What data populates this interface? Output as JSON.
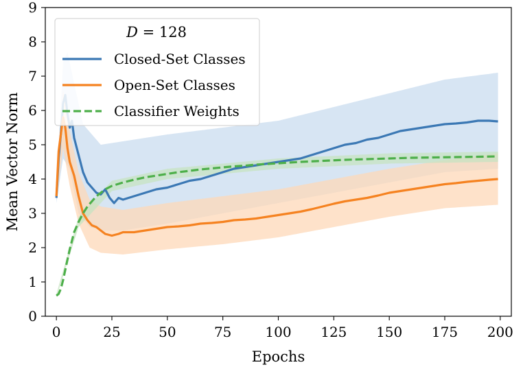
{
  "chart_data": {
    "type": "line",
    "title": "",
    "xlabel": "Epochs",
    "ylabel": "Mean Vector Norm",
    "xlim": [
      -5,
      205
    ],
    "ylim": [
      0,
      9
    ],
    "xticks": [
      "0",
      "25",
      "50",
      "75",
      "100",
      "125",
      "150",
      "175",
      "200"
    ],
    "yticks": [
      "0",
      "1",
      "2",
      "3",
      "4",
      "5",
      "6",
      "7",
      "8",
      "9"
    ],
    "legend": {
      "title_var": "D",
      "title_eq": " = 128",
      "placement": "top-left"
    },
    "series": [
      {
        "name": "Closed-Set Classes",
        "color": "#3b78b4",
        "style": "solid",
        "band_color": "#c9dcef",
        "points": [
          [
            0,
            3.45
          ],
          [
            1,
            4.6
          ],
          [
            2,
            5.3
          ],
          [
            3,
            6.2
          ],
          [
            4,
            6.45
          ],
          [
            5,
            5.9
          ],
          [
            6,
            5.5
          ],
          [
            7,
            5.7
          ],
          [
            8,
            5.2
          ],
          [
            10,
            4.7
          ],
          [
            12,
            4.2
          ],
          [
            14,
            3.9
          ],
          [
            16,
            3.75
          ],
          [
            18,
            3.6
          ],
          [
            20,
            3.55
          ],
          [
            22,
            3.7
          ],
          [
            24,
            3.45
          ],
          [
            26,
            3.3
          ],
          [
            28,
            3.45
          ],
          [
            30,
            3.4
          ],
          [
            35,
            3.5
          ],
          [
            40,
            3.6
          ],
          [
            45,
            3.7
          ],
          [
            50,
            3.75
          ],
          [
            55,
            3.85
          ],
          [
            60,
            3.95
          ],
          [
            65,
            4.0
          ],
          [
            70,
            4.1
          ],
          [
            75,
            4.2
          ],
          [
            80,
            4.3
          ],
          [
            85,
            4.35
          ],
          [
            90,
            4.4
          ],
          [
            95,
            4.45
          ],
          [
            100,
            4.5
          ],
          [
            105,
            4.55
          ],
          [
            110,
            4.6
          ],
          [
            115,
            4.7
          ],
          [
            120,
            4.8
          ],
          [
            125,
            4.9
          ],
          [
            130,
            5.0
          ],
          [
            135,
            5.05
          ],
          [
            140,
            5.15
          ],
          [
            145,
            5.2
          ],
          [
            150,
            5.3
          ],
          [
            155,
            5.4
          ],
          [
            160,
            5.45
          ],
          [
            165,
            5.5
          ],
          [
            170,
            5.55
          ],
          [
            175,
            5.6
          ],
          [
            180,
            5.62
          ],
          [
            185,
            5.65
          ],
          [
            190,
            5.7
          ],
          [
            195,
            5.7
          ],
          [
            199,
            5.68
          ]
        ],
        "band_lower": [
          [
            0,
            3.3
          ],
          [
            3,
            4.6
          ],
          [
            6,
            4.3
          ],
          [
            10,
            3.0
          ],
          [
            15,
            2.6
          ],
          [
            20,
            2.5
          ],
          [
            30,
            2.5
          ],
          [
            50,
            2.7
          ],
          [
            75,
            3.0
          ],
          [
            100,
            3.3
          ],
          [
            125,
            3.6
          ],
          [
            150,
            3.9
          ],
          [
            175,
            4.2
          ],
          [
            199,
            4.3
          ]
        ],
        "band_upper": [
          [
            0,
            3.6
          ],
          [
            3,
            7.4
          ],
          [
            5,
            7.7
          ],
          [
            8,
            6.8
          ],
          [
            12,
            5.6
          ],
          [
            20,
            5.0
          ],
          [
            30,
            5.1
          ],
          [
            50,
            5.3
          ],
          [
            75,
            5.5
          ],
          [
            100,
            5.7
          ],
          [
            125,
            6.1
          ],
          [
            150,
            6.5
          ],
          [
            175,
            6.9
          ],
          [
            199,
            7.1
          ]
        ]
      },
      {
        "name": "Open-Set Classes",
        "color": "#f58220",
        "style": "solid",
        "band_color": "#fed8b8",
        "points": [
          [
            0,
            3.5
          ],
          [
            1,
            4.8
          ],
          [
            2,
            5.3
          ],
          [
            3,
            5.8
          ],
          [
            4,
            5.5
          ],
          [
            5,
            4.9
          ],
          [
            6,
            4.5
          ],
          [
            7,
            4.3
          ],
          [
            8,
            4.1
          ],
          [
            10,
            3.5
          ],
          [
            12,
            3.0
          ],
          [
            14,
            2.8
          ],
          [
            16,
            2.65
          ],
          [
            18,
            2.6
          ],
          [
            20,
            2.5
          ],
          [
            22,
            2.4
          ],
          [
            25,
            2.35
          ],
          [
            28,
            2.4
          ],
          [
            30,
            2.45
          ],
          [
            35,
            2.45
          ],
          [
            40,
            2.5
          ],
          [
            45,
            2.55
          ],
          [
            50,
            2.6
          ],
          [
            55,
            2.62
          ],
          [
            60,
            2.65
          ],
          [
            65,
            2.7
          ],
          [
            70,
            2.72
          ],
          [
            75,
            2.75
          ],
          [
            80,
            2.8
          ],
          [
            85,
            2.82
          ],
          [
            90,
            2.85
          ],
          [
            95,
            2.9
          ],
          [
            100,
            2.95
          ],
          [
            105,
            3.0
          ],
          [
            110,
            3.05
          ],
          [
            115,
            3.12
          ],
          [
            120,
            3.2
          ],
          [
            125,
            3.28
          ],
          [
            130,
            3.35
          ],
          [
            135,
            3.4
          ],
          [
            140,
            3.45
          ],
          [
            145,
            3.52
          ],
          [
            150,
            3.6
          ],
          [
            155,
            3.65
          ],
          [
            160,
            3.7
          ],
          [
            165,
            3.75
          ],
          [
            170,
            3.8
          ],
          [
            175,
            3.85
          ],
          [
            180,
            3.88
          ],
          [
            185,
            3.92
          ],
          [
            190,
            3.95
          ],
          [
            195,
            3.98
          ],
          [
            199,
            4.0
          ]
        ],
        "band_lower": [
          [
            0,
            3.4
          ],
          [
            3,
            4.9
          ],
          [
            6,
            3.8
          ],
          [
            10,
            2.7
          ],
          [
            15,
            2.0
          ],
          [
            20,
            1.85
          ],
          [
            30,
            1.8
          ],
          [
            50,
            1.95
          ],
          [
            75,
            2.1
          ],
          [
            100,
            2.3
          ],
          [
            125,
            2.6
          ],
          [
            150,
            2.9
          ],
          [
            175,
            3.15
          ],
          [
            199,
            3.25
          ]
        ],
        "band_upper": [
          [
            0,
            3.6
          ],
          [
            3,
            6.6
          ],
          [
            6,
            5.4
          ],
          [
            10,
            4.2
          ],
          [
            15,
            3.4
          ],
          [
            20,
            3.2
          ],
          [
            30,
            3.1
          ],
          [
            50,
            3.3
          ],
          [
            75,
            3.5
          ],
          [
            100,
            3.7
          ],
          [
            125,
            4.0
          ],
          [
            150,
            4.3
          ],
          [
            175,
            4.55
          ],
          [
            199,
            4.75
          ]
        ]
      },
      {
        "name": "Classifier Weights",
        "color": "#4daf4a",
        "style": "dashed",
        "band_color": "#c7e3c2",
        "points": [
          [
            0,
            0.6
          ],
          [
            1,
            0.65
          ],
          [
            2,
            0.8
          ],
          [
            3,
            1.05
          ],
          [
            4,
            1.35
          ],
          [
            5,
            1.65
          ],
          [
            6,
            1.95
          ],
          [
            7,
            2.2
          ],
          [
            8,
            2.45
          ],
          [
            10,
            2.75
          ],
          [
            12,
            3.0
          ],
          [
            14,
            3.2
          ],
          [
            16,
            3.35
          ],
          [
            18,
            3.5
          ],
          [
            20,
            3.6
          ],
          [
            22,
            3.7
          ],
          [
            25,
            3.8
          ],
          [
            30,
            3.9
          ],
          [
            35,
            3.98
          ],
          [
            40,
            4.05
          ],
          [
            45,
            4.1
          ],
          [
            50,
            4.15
          ],
          [
            55,
            4.2
          ],
          [
            60,
            4.24
          ],
          [
            65,
            4.28
          ],
          [
            70,
            4.31
          ],
          [
            75,
            4.34
          ],
          [
            80,
            4.37
          ],
          [
            85,
            4.39
          ],
          [
            90,
            4.42
          ],
          [
            95,
            4.44
          ],
          [
            100,
            4.46
          ],
          [
            110,
            4.5
          ],
          [
            120,
            4.53
          ],
          [
            130,
            4.56
          ],
          [
            140,
            4.58
          ],
          [
            150,
            4.6
          ],
          [
            160,
            4.62
          ],
          [
            170,
            4.63
          ],
          [
            180,
            4.64
          ],
          [
            190,
            4.65
          ],
          [
            199,
            4.66
          ]
        ],
        "band_lower": [
          [
            0,
            0.55
          ],
          [
            10,
            2.6
          ],
          [
            25,
            3.65
          ],
          [
            50,
            4.0
          ],
          [
            100,
            4.3
          ],
          [
            150,
            4.45
          ],
          [
            199,
            4.5
          ]
        ],
        "band_upper": [
          [
            0,
            0.65
          ],
          [
            10,
            2.9
          ],
          [
            25,
            3.95
          ],
          [
            50,
            4.3
          ],
          [
            100,
            4.6
          ],
          [
            150,
            4.75
          ],
          [
            199,
            4.8
          ]
        ]
      }
    ]
  }
}
